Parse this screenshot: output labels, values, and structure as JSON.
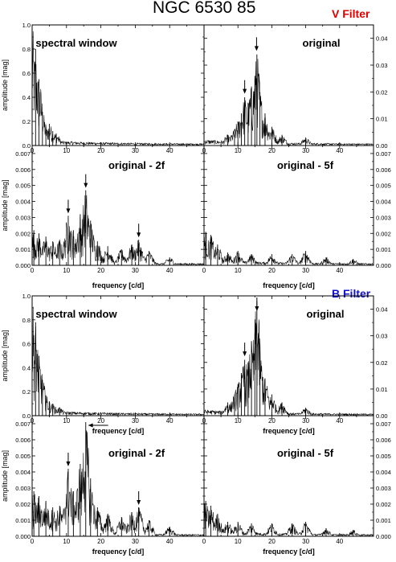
{
  "title": "NGC 6530 85",
  "filters": [
    {
      "label": "V Filter",
      "color": "#e00000"
    },
    {
      "label": "B Filter",
      "color": "#1010d0"
    }
  ],
  "axis_labels": {
    "ylabel": "amplitude [mag]",
    "xlabel": "frequency [c/d]"
  },
  "chart_data": [
    {
      "type": "line",
      "group": "V Filter",
      "title": "spectral window",
      "ylabel": "amplitude [mag]",
      "xlabel": "",
      "xlim": [
        0,
        50
      ],
      "ylim": [
        0,
        1.0
      ],
      "xticks": [
        0,
        10,
        20,
        30,
        40
      ],
      "yticks": [
        0.0,
        0.2,
        0.4,
        0.6,
        0.8,
        1.0
      ],
      "ytick_labels_side": "left",
      "series": [
        {
          "peaks": [
            [
              0,
              1.0
            ],
            [
              1,
              0.8
            ],
            [
              2,
              0.55
            ],
            [
              3,
              0.28
            ],
            [
              4,
              0.15
            ],
            [
              5,
              0.18
            ],
            [
              6,
              0.12
            ],
            [
              7,
              0.1
            ]
          ]
        }
      ],
      "annotations": []
    },
    {
      "type": "line",
      "group": "V Filter",
      "title": "original",
      "ylabel": "",
      "xlabel": "",
      "xlim": [
        0,
        50
      ],
      "ylim": [
        0,
        0.045
      ],
      "xticks": [
        0,
        10,
        20,
        30,
        40
      ],
      "yticks": [
        0.0,
        0.01,
        0.02,
        0.03,
        0.04
      ],
      "ytick_labels_side": "right",
      "series": [
        {
          "peaks": [
            [
              7,
              0.004
            ],
            [
              9,
              0.006
            ],
            [
              10,
              0.009
            ],
            [
              11,
              0.012
            ],
            [
              12,
              0.018
            ],
            [
              13,
              0.016
            ],
            [
              14,
              0.022
            ],
            [
              15,
              0.026
            ],
            [
              15.6,
              0.034
            ],
            [
              16.5,
              0.02
            ],
            [
              18,
              0.012
            ],
            [
              20,
              0.007
            ],
            [
              23,
              0.004
            ],
            [
              30,
              0.003
            ]
          ]
        }
      ],
      "annotations": [
        {
          "type": "arrow",
          "x": 15.5,
          "y": 0.035
        },
        {
          "type": "arrow",
          "x": 12,
          "y": 0.019
        }
      ]
    },
    {
      "type": "line",
      "group": "V Filter",
      "title": "original - 2f",
      "ylabel": "amplitude [mag]",
      "xlabel": "",
      "xlim": [
        0,
        50
      ],
      "ylim": [
        0,
        0.0075
      ],
      "xticks": [
        0,
        10,
        20,
        30,
        40
      ],
      "yticks": [
        0.0,
        0.001,
        0.002,
        0.003,
        0.004,
        0.005,
        0.006,
        0.007
      ],
      "ytick_labels_side": "left",
      "series": [
        {
          "peaks": [
            [
              0.5,
              0.0022
            ],
            [
              2,
              0.002
            ],
            [
              4,
              0.0018
            ],
            [
              6,
              0.0015
            ],
            [
              8,
              0.0016
            ],
            [
              10.5,
              0.0031
            ],
            [
              12,
              0.0022
            ],
            [
              14,
              0.0032
            ],
            [
              15.6,
              0.0047
            ],
            [
              17,
              0.0028
            ],
            [
              19,
              0.0015
            ],
            [
              22,
              0.0012
            ],
            [
              26,
              0.001
            ],
            [
              29,
              0.0013
            ],
            [
              31,
              0.0016
            ],
            [
              34,
              0.0009
            ],
            [
              40,
              0.0005
            ]
          ]
        }
      ],
      "annotations": [
        {
          "type": "arrow",
          "x": 10.5,
          "y": 0.0032
        },
        {
          "type": "arrow",
          "x": 15.6,
          "y": 0.0048
        },
        {
          "type": "arrow",
          "x": 31,
          "y": 0.0017
        }
      ]
    },
    {
      "type": "line",
      "group": "V Filter",
      "title": "original - 5f",
      "ylabel": "",
      "xlabel": "",
      "xlim": [
        0,
        50
      ],
      "ylim": [
        0,
        0.0075
      ],
      "xticks": [
        0,
        10,
        20,
        30,
        40
      ],
      "yticks": [
        0.0,
        0.001,
        0.002,
        0.003,
        0.004,
        0.005,
        0.006,
        0.007
      ],
      "ytick_labels_side": "right",
      "series": [
        {
          "peaks": [
            [
              0.5,
              0.0021
            ],
            [
              2,
              0.0019
            ],
            [
              4,
              0.0013
            ],
            [
              7,
              0.0008
            ],
            [
              10,
              0.0009
            ],
            [
              14,
              0.0007
            ],
            [
              20,
              0.0007
            ],
            [
              26,
              0.0007
            ],
            [
              30,
              0.0009
            ],
            [
              36,
              0.0005
            ],
            [
              44,
              0.0004
            ]
          ]
        }
      ],
      "annotations": []
    },
    {
      "type": "line",
      "group": "B Filter",
      "title": "spectral window",
      "ylabel": "amplitude [mag]",
      "xlabel": "frequency [c/d]",
      "xlim": [
        0,
        50
      ],
      "ylim": [
        0,
        1.0
      ],
      "xticks": [
        0,
        10,
        20,
        30,
        40
      ],
      "yticks": [
        0.0,
        0.2,
        0.4,
        0.6,
        0.8,
        1.0
      ],
      "ytick_labels_side": "left",
      "series": [
        {
          "peaks": [
            [
              0,
              1.0
            ],
            [
              1,
              0.78
            ],
            [
              2,
              0.5
            ],
            [
              3,
              0.3
            ],
            [
              4,
              0.17
            ],
            [
              5,
              0.12
            ],
            [
              6,
              0.1
            ],
            [
              8,
              0.07
            ]
          ]
        }
      ],
      "annotations": []
    },
    {
      "type": "line",
      "group": "B Filter",
      "title": "original",
      "ylabel": "",
      "xlabel": "frequency [c/d]",
      "xlim": [
        0,
        50
      ],
      "ylim": [
        0,
        0.045
      ],
      "xticks": [
        0,
        10,
        20,
        30,
        40
      ],
      "yticks": [
        0.0,
        0.01,
        0.02,
        0.03,
        0.04
      ],
      "ytick_labels_side": "right",
      "series": [
        {
          "peaks": [
            [
              7,
              0.005
            ],
            [
              9,
              0.008
            ],
            [
              10,
              0.012
            ],
            [
              11,
              0.016
            ],
            [
              12,
              0.021
            ],
            [
              13,
              0.02
            ],
            [
              14,
              0.028
            ],
            [
              15,
              0.031
            ],
            [
              15.6,
              0.043
            ],
            [
              16.5,
              0.024
            ],
            [
              18,
              0.014
            ],
            [
              20,
              0.008
            ],
            [
              23,
              0.005
            ],
            [
              30,
              0.003
            ]
          ]
        }
      ],
      "annotations": [
        {
          "type": "arrow",
          "x": 15.6,
          "y": 0.044
        },
        {
          "type": "arrow",
          "x": 12,
          "y": 0.022
        }
      ]
    },
    {
      "type": "line",
      "group": "B Filter",
      "title": "original - 2f",
      "ylabel": "amplitude [mag]",
      "xlabel": "frequency [c/d]",
      "xlim": [
        0,
        50
      ],
      "ylim": [
        0,
        0.0075
      ],
      "xticks": [
        0,
        10,
        20,
        30,
        40
      ],
      "yticks": [
        0.0,
        0.001,
        0.002,
        0.003,
        0.004,
        0.005,
        0.006,
        0.007
      ],
      "ytick_labels_side": "left",
      "series": [
        {
          "peaks": [
            [
              0.5,
              0.0028
            ],
            [
              2,
              0.0025
            ],
            [
              4,
              0.0022
            ],
            [
              6,
              0.0018
            ],
            [
              8,
              0.0019
            ],
            [
              10.5,
              0.0042
            ],
            [
              12,
              0.0028
            ],
            [
              14,
              0.0045
            ],
            [
              15.6,
              0.0071
            ],
            [
              17,
              0.0036
            ],
            [
              19,
              0.0018
            ],
            [
              22,
              0.0014
            ],
            [
              26,
              0.0012
            ],
            [
              29,
              0.0015
            ],
            [
              31,
              0.0018
            ],
            [
              34,
              0.001
            ],
            [
              40,
              0.0006
            ]
          ]
        }
      ],
      "annotations": [
        {
          "type": "arrow",
          "x": 10.5,
          "y": 0.0043
        },
        {
          "type": "arrow",
          "x": 31,
          "y": 0.0019
        },
        {
          "type": "arrow-left",
          "x": 16.5,
          "y": 0.0069
        }
      ]
    },
    {
      "type": "line",
      "group": "B Filter",
      "title": "original - 5f",
      "ylabel": "",
      "xlabel": "frequency [c/d]",
      "xlim": [
        0,
        50
      ],
      "ylim": [
        0,
        0.0075
      ],
      "xticks": [
        0,
        10,
        20,
        30,
        40
      ],
      "yticks": [
        0.0,
        0.001,
        0.002,
        0.003,
        0.004,
        0.005,
        0.006,
        0.007
      ],
      "ytick_labels_side": "right",
      "series": [
        {
          "peaks": [
            [
              0.5,
              0.0022
            ],
            [
              2,
              0.0019
            ],
            [
              4,
              0.0014
            ],
            [
              7,
              0.0009
            ],
            [
              10,
              0.0009
            ],
            [
              14,
              0.0008
            ],
            [
              20,
              0.0008
            ],
            [
              26,
              0.0008
            ],
            [
              30,
              0.0009
            ],
            [
              36,
              0.0005
            ],
            [
              44,
              0.0004
            ]
          ]
        }
      ],
      "annotations": []
    }
  ]
}
